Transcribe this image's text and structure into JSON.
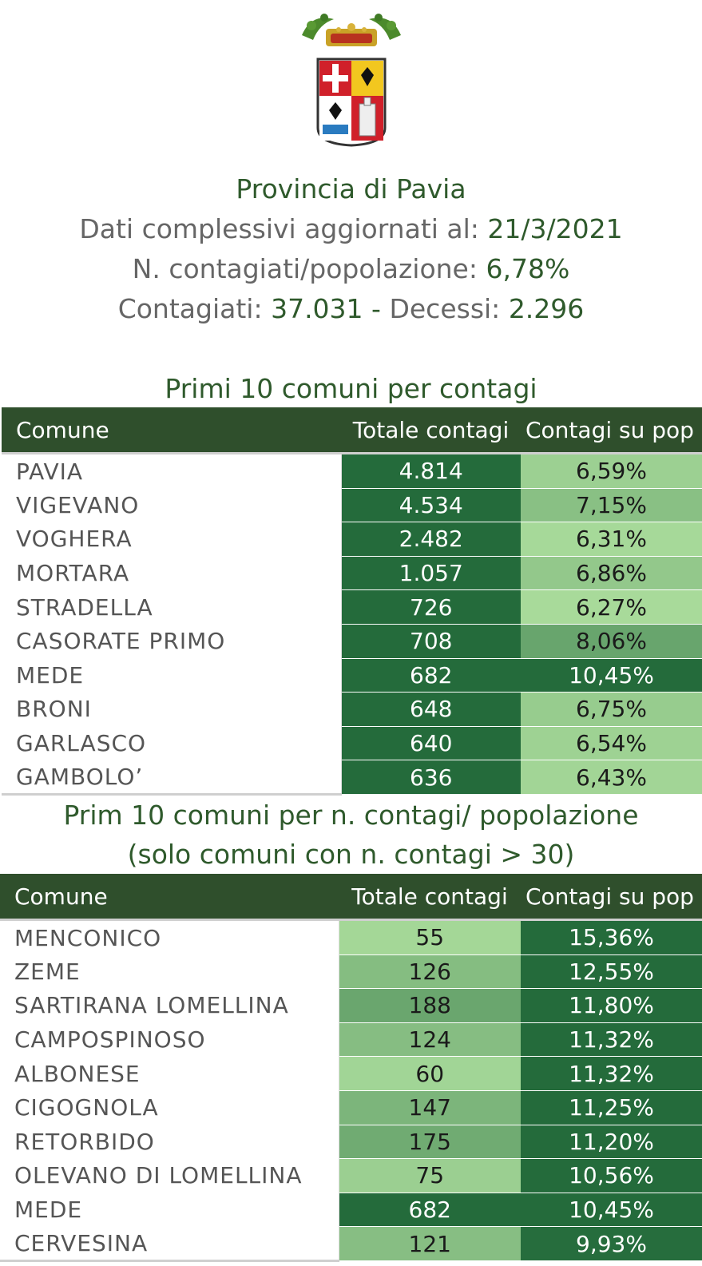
{
  "header": {
    "title": "Provincia di Pavia",
    "update_label": "Dati complessivi aggiornati al:",
    "update_date": "21/3/2021",
    "ratio_label": "N. contagiati/popolazione:",
    "ratio_value": "6,78%",
    "cases_label": "Contagiati:",
    "cases_value": "37.031",
    "separator": "-",
    "deaths_label": "Decessi:",
    "deaths_value": "2.296"
  },
  "colors": {
    "brand_green": "#2f5a2c",
    "header_bg": "#2f4f2c",
    "dark": "#246b3b",
    "palest": "#aadc9c"
  },
  "table1": {
    "title": "Primi 10 comuni per contagi",
    "headers": [
      "Comune",
      "Totale contagi",
      "Contagi su pop"
    ],
    "rows": [
      {
        "comune": "PAVIA",
        "totale": "4.814",
        "perc": "6,59%"
      },
      {
        "comune": "VIGEVANO",
        "totale": "4.534",
        "perc": "7,15%"
      },
      {
        "comune": "VOGHERA",
        "totale": "2.482",
        "perc": "6,31%"
      },
      {
        "comune": "MORTARA",
        "totale": "1.057",
        "perc": "6,86%"
      },
      {
        "comune": "STRADELLA",
        "totale": "726",
        "perc": "6,27%"
      },
      {
        "comune": "CASORATE PRIMO",
        "totale": "708",
        "perc": "8,06%"
      },
      {
        "comune": "MEDE",
        "totale": "682",
        "perc": "10,45%"
      },
      {
        "comune": "BRONI",
        "totale": "648",
        "perc": "6,75%"
      },
      {
        "comune": "GARLASCO",
        "totale": "640",
        "perc": "6,54%"
      },
      {
        "comune": "GAMBOLO’",
        "totale": "636",
        "perc": "6,43%"
      }
    ]
  },
  "table2": {
    "title_line1": "Prim 10 comuni per n. contagi/ popolazione",
    "title_line2": "(solo comuni con n. contagi > 30)",
    "headers": [
      "Comune",
      "Totale contagi",
      "Contagi su pop"
    ],
    "rows": [
      {
        "comune": "MENCONICO",
        "totale": "55",
        "perc": "15,36%"
      },
      {
        "comune": "ZEME",
        "totale": "126",
        "perc": "12,55%"
      },
      {
        "comune": "SARTIRANA LOMELLINA",
        "totale": "188",
        "perc": "11,80%"
      },
      {
        "comune": "CAMPOSPINOSO",
        "totale": "124",
        "perc": "11,32%"
      },
      {
        "comune": "ALBONESE",
        "totale": "60",
        "perc": "11,32%"
      },
      {
        "comune": "CIGOGNOLA",
        "totale": "147",
        "perc": "11,25%"
      },
      {
        "comune": "RETORBIDO",
        "totale": "175",
        "perc": "11,20%"
      },
      {
        "comune": "OLEVANO DI LOMELLINA",
        "totale": "75",
        "perc": "10,56%"
      },
      {
        "comune": "MEDE",
        "totale": "682",
        "perc": "10,45%"
      },
      {
        "comune": "CERVESINA",
        "totale": "121",
        "perc": "9,93%"
      }
    ]
  }
}
